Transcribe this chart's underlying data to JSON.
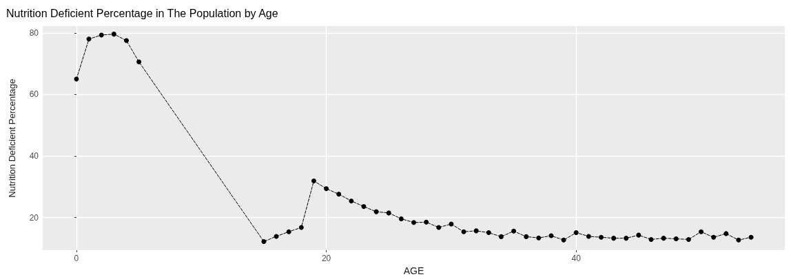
{
  "chart_data": {
    "type": "line",
    "title": "Nutrition Deficient Percentage in The Population by Age",
    "xlabel": "AGE",
    "ylabel": "Nutrition Deficient Percentage",
    "x": [
      0,
      1,
      2,
      3,
      4,
      5,
      15,
      16,
      17,
      18,
      19,
      20,
      21,
      22,
      23,
      24,
      25,
      26,
      27,
      28,
      29,
      30,
      31,
      32,
      33,
      34,
      35,
      36,
      37,
      38,
      39,
      40,
      41,
      42,
      43,
      44,
      45,
      46,
      47,
      48,
      49,
      50,
      51,
      52,
      53,
      54
    ],
    "series": [
      {
        "color": "#000000",
        "values": [
          65,
          78,
          79.3,
          79.6,
          77.5,
          70.6,
          12.2,
          13.9,
          15.4,
          16.8,
          31.9,
          29.4,
          27.6,
          25.4,
          23.6,
          21.9,
          21.5,
          19.6,
          18.4,
          18.5,
          16.8,
          17.9,
          15.4,
          15.7,
          15.1,
          13.8,
          15.6,
          13.8,
          13.4,
          14.1,
          12.7,
          15.1,
          13.9,
          13.6,
          13.3,
          13.3,
          14.3,
          12.9,
          13.3,
          13.1,
          12.9,
          15.4,
          13.6,
          14.8,
          12.7,
          13.6
        ]
      }
    ],
    "xlim": [
      -2.7,
      56.7
    ],
    "xticks": [
      0,
      20,
      40
    ],
    "ylim": [
      9.4,
      82.2
    ],
    "yticks": [
      20,
      40,
      60,
      80
    ],
    "grid": true,
    "marker": "circle",
    "line_style": "dashed"
  }
}
